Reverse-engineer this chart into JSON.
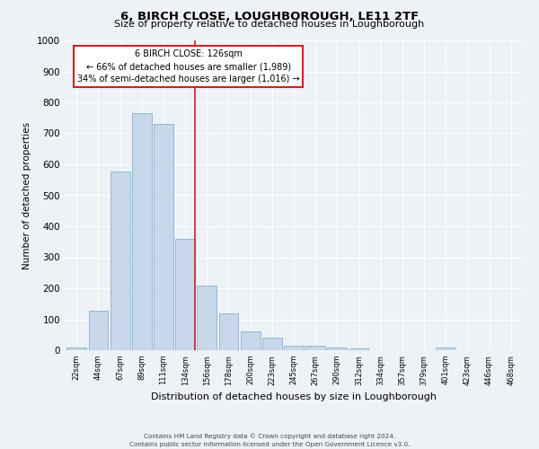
{
  "title": "6, BIRCH CLOSE, LOUGHBOROUGH, LE11 2TF",
  "subtitle": "Size of property relative to detached houses in Loughborough",
  "xlabel": "Distribution of detached houses by size in Loughborough",
  "ylabel": "Number of detached properties",
  "bar_labels": [
    "22sqm",
    "44sqm",
    "67sqm",
    "89sqm",
    "111sqm",
    "134sqm",
    "156sqm",
    "178sqm",
    "200sqm",
    "223sqm",
    "245sqm",
    "267sqm",
    "290sqm",
    "312sqm",
    "334sqm",
    "357sqm",
    "379sqm",
    "401sqm",
    "423sqm",
    "446sqm",
    "468sqm"
  ],
  "bar_values": [
    10,
    128,
    578,
    765,
    730,
    358,
    210,
    120,
    62,
    40,
    15,
    15,
    10,
    7,
    0,
    0,
    0,
    8,
    0,
    0,
    0
  ],
  "bar_color": "#c8d8ea",
  "bar_edge_color": "#90b8d0",
  "ylim": [
    0,
    1000
  ],
  "yticks": [
    0,
    100,
    200,
    300,
    400,
    500,
    600,
    700,
    800,
    900,
    1000
  ],
  "vline_x_index": 5,
  "vline_color": "#cc2222",
  "annotation_title": "6 BIRCH CLOSE: 126sqm",
  "annotation_line1": "← 66% of detached houses are smaller (1,989)",
  "annotation_line2": "34% of semi-detached houses are larger (1,016) →",
  "annotation_box_color": "#cc2222",
  "footer_line1": "Contains HM Land Registry data © Crown copyright and database right 2024.",
  "footer_line2": "Contains public sector information licensed under the Open Government Licence v3.0.",
  "bg_color": "#eef2f7",
  "plot_bg_color": "#eef2f7",
  "grid_color": "#ffffff"
}
